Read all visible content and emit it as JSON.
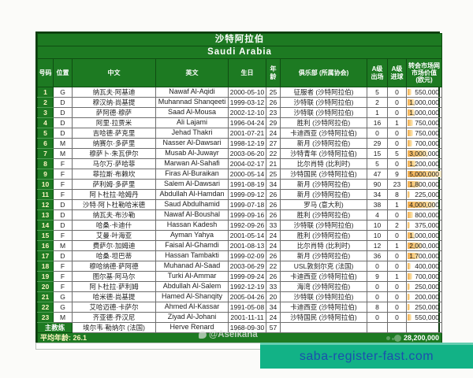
{
  "title": {
    "cn": "沙特阿拉伯",
    "en": "Saudi Arabia"
  },
  "header": {
    "no": "号码",
    "pos": "位置",
    "cn": "中文",
    "en": "英文",
    "dob": "生日",
    "age": "年龄",
    "club": "俱乐部 (所属协会)",
    "caps": "A级 出场",
    "goals": "A级 进球",
    "value": "转会市场网市场价值 (欧元)"
  },
  "players": [
    {
      "no": "1",
      "pos": "G",
      "cn": "纳瓦夫·阿基迪",
      "en": "Nawaf Al-Aqidi",
      "dob": "2000-05-10",
      "age": "25",
      "club": "征服者 (沙特阿拉伯)",
      "caps": "5",
      "goals": "0",
      "value": "550,000"
    },
    {
      "no": "2",
      "pos": "D",
      "cn": "穆汉纳·尚基提",
      "en": "Muhannad Shanqeeti",
      "dob": "1999-03-12",
      "age": "26",
      "club": "沙特联 (沙特阿拉伯)",
      "caps": "2",
      "goals": "0",
      "value": "1,000,000"
    },
    {
      "no": "3",
      "pos": "D",
      "cn": "萨阿德·穆萨",
      "en": "Saad Al-Mousa",
      "dob": "2002-12-10",
      "age": "23",
      "club": "沙特联 (沙特阿拉伯)",
      "caps": "1",
      "goals": "0",
      "value": "1,000,000"
    },
    {
      "no": "4",
      "pos": "D",
      "cn": "阿里·拉贾米",
      "en": "Ali Lajami",
      "dob": "1996-04-24",
      "age": "29",
      "club": "胜利 (沙特阿拉伯)",
      "caps": "16",
      "goals": "1",
      "value": "750,000"
    },
    {
      "no": "5",
      "pos": "D",
      "cn": "吉哈德·萨克里",
      "en": "Jehad Thakri",
      "dob": "2001-07-21",
      "age": "24",
      "club": "卡迪西亚 (沙特阿拉伯)",
      "caps": "0",
      "goals": "0",
      "value": "750,000"
    },
    {
      "no": "6",
      "pos": "M",
      "cn": "纳赛尔·多萨里",
      "en": "Nasser Al-Dawsari",
      "dob": "1998-12-19",
      "age": "27",
      "club": "新月 (沙特阿拉伯)",
      "caps": "29",
      "goals": "0",
      "value": "700,000"
    },
    {
      "no": "7",
      "pos": "M",
      "cn": "穆萨卜·朱瓦伊尔",
      "en": "Musab Al-Juwayr",
      "dob": "2003-06-20",
      "age": "22",
      "club": "沙特青年 (沙特阿拉伯)",
      "caps": "15",
      "goals": "5",
      "value": "3,000,000"
    },
    {
      "no": "8",
      "pos": "F",
      "cn": "马尔万·萨哈菲",
      "en": "Marwan Al-Sahafi",
      "dob": "2004-02-17",
      "age": "21",
      "club": "比尔肖特 (比利时)",
      "caps": "5",
      "goals": "0",
      "value": "1,200,000"
    },
    {
      "no": "9",
      "pos": "F",
      "cn": "菲拉斯·布赖坎",
      "en": "Firas Al-Buraikan",
      "dob": "2000-05-14",
      "age": "25",
      "club": "沙特国民 (沙特阿拉伯)",
      "caps": "47",
      "goals": "9",
      "value": "5,000,000"
    },
    {
      "no": "10",
      "pos": "F",
      "cn": "萨利姆·多萨里",
      "en": "Salem Al-Dawsari",
      "dob": "1991-08-19",
      "age": "34",
      "club": "新月 (沙特阿拉伯)",
      "caps": "90",
      "goals": "23",
      "value": "1,800,000"
    },
    {
      "no": "11",
      "pos": "F",
      "cn": "阿卜杜拉·哈姆丹",
      "en": "Abdullah Al-Hamdan",
      "dob": "1999-09-12",
      "age": "26",
      "club": "新月 (沙特阿拉伯)",
      "caps": "34",
      "goals": "8",
      "value": "225,000"
    },
    {
      "no": "12",
      "pos": "D",
      "cn": "沙特·阿卜杜勒哈米德",
      "en": "Saud Abdulhamid",
      "dob": "1999-07-18",
      "age": "26",
      "club": "罗马 (意大利)",
      "caps": "38",
      "goals": "1",
      "value": "4,000,000"
    },
    {
      "no": "13",
      "pos": "D",
      "cn": "纳瓦夫·布沙勒",
      "en": "Nawaf Al-Boushal",
      "dob": "1999-09-16",
      "age": "26",
      "club": "胜利 (沙特阿拉伯)",
      "caps": "4",
      "goals": "0",
      "value": "800,000"
    },
    {
      "no": "14",
      "pos": "D",
      "cn": "哈桑·卡迪什",
      "en": "Hassan Kadesh",
      "dob": "1992-09-26",
      "age": "33",
      "club": "沙特联 (沙特阿拉伯)",
      "caps": "10",
      "goals": "2",
      "value": "375,000"
    },
    {
      "no": "15",
      "pos": "F",
      "cn": "艾曼·叶海亚",
      "en": "Ayman Yahya",
      "dob": "2001-05-14",
      "age": "24",
      "club": "胜利 (沙特阿拉伯)",
      "caps": "10",
      "goals": "0",
      "value": "1,000,000"
    },
    {
      "no": "16",
      "pos": "M",
      "cn": "费萨尔·加姆迪",
      "en": "Faisal Al-Ghamdi",
      "dob": "2001-08-13",
      "age": "24",
      "club": "比尔肖特 (比利时)",
      "caps": "12",
      "goals": "1",
      "value": "2,000,000"
    },
    {
      "no": "17",
      "pos": "D",
      "cn": "哈桑·坦巴蒂",
      "en": "Hassan Tambakti",
      "dob": "1999-02-09",
      "age": "26",
      "club": "新月 (沙特阿拉伯)",
      "caps": "36",
      "goals": "0",
      "value": "1,700,000"
    },
    {
      "no": "18",
      "pos": "F",
      "cn": "穆哈纳德·萨阿德",
      "en": "Muhanad Al-Saad",
      "dob": "2003-06-29",
      "age": "22",
      "club": "USL敦刻尔克 (法国)",
      "caps": "0",
      "goals": "0",
      "value": "400,000"
    },
    {
      "no": "19",
      "pos": "F",
      "cn": "图尔基·阿马尔",
      "en": "Turki Al-Ammar",
      "dob": "1999-09-24",
      "age": "26",
      "club": "卡迪西亚 (沙特阿拉伯)",
      "caps": "9",
      "goals": "1",
      "value": "700,000"
    },
    {
      "no": "20",
      "pos": "F",
      "cn": "阿卜杜拉·萨利姆",
      "en": "Abdullah Al-Salem",
      "dob": "1992-12-19",
      "age": "33",
      "club": "海湾 (沙特阿拉伯)",
      "caps": "0",
      "goals": "0",
      "value": "250,000"
    },
    {
      "no": "21",
      "pos": "G",
      "cn": "哈米德·尚基提",
      "en": "Hamed Al-Shanqity",
      "dob": "2005-04-26",
      "age": "20",
      "club": "沙特联 (沙特阿拉伯)",
      "caps": "0",
      "goals": "0",
      "value": "200,000"
    },
    {
      "no": "22",
      "pos": "G",
      "cn": "艾哈迈德·卡萨尔",
      "en": "Ahmed Al-Kassar",
      "dob": "1991-05-08",
      "age": "34",
      "club": "卡迪西亚 (沙特阿拉伯)",
      "caps": "8",
      "goals": "0",
      "value": "250,000"
    },
    {
      "no": "23",
      "pos": "M",
      "cn": "齐亚德·乔汉尼",
      "en": "Ziyad Al-Johani",
      "dob": "2001-11-11",
      "age": "24",
      "club": "沙特国民 (沙特阿拉伯)",
      "caps": "0",
      "goals": "0",
      "value": "550,000"
    }
  ],
  "coach": {
    "label": "主教练",
    "cn": "埃尔韦·勒纳尔 (法国)",
    "en": "Herve Renard",
    "dob": "1968-09-30",
    "age": "57"
  },
  "footer": {
    "avg_text": "平均年龄: 26.1",
    "total_value": "28,200,000"
  },
  "watermarks": {
    "weibo_handle": "@Aseikana",
    "promo_link": "saba-register-fast.com"
  },
  "colors": {
    "table_green": "#1d7a22",
    "promo_teal": "#12b286",
    "promo_text_blue": "#1b4fae",
    "value_bar_orange": "#f3ae4e"
  },
  "value_bar_max": 5000000
}
